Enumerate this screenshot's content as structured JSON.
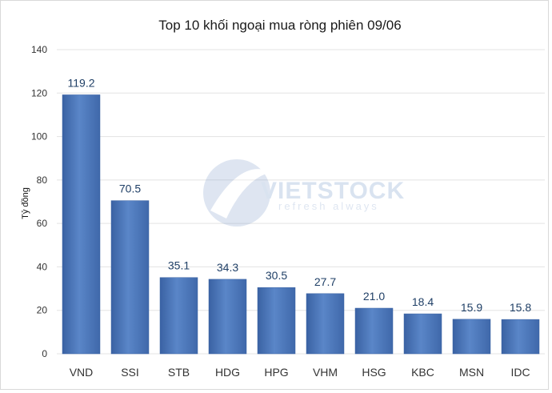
{
  "chart_data": {
    "type": "bar",
    "title": "Top 10 khối ngoại mua ròng phiên 09/06",
    "ylabel": "Tỷ đồng",
    "xlabel": "",
    "categories": [
      "VND",
      "SSI",
      "STB",
      "HDG",
      "HPG",
      "VHM",
      "HSG",
      "KBC",
      "MSN",
      "IDC"
    ],
    "values": [
      119.2,
      70.5,
      35.1,
      34.3,
      30.5,
      27.7,
      21.0,
      18.4,
      15.9,
      15.8
    ],
    "value_labels": [
      "119.2",
      "70.5",
      "35.1",
      "34.3",
      "30.5",
      "27.7",
      "21.0",
      "18.4",
      "15.9",
      "15.8"
    ],
    "ylim": [
      0,
      140
    ],
    "yticks": [
      0,
      20,
      40,
      60,
      80,
      100,
      120,
      140
    ],
    "grid": true,
    "legend": "none",
    "colors": {
      "bar": "#4a74b8",
      "bar_light": "#5a86c8",
      "bar_dark": "#3a62a3",
      "grid": "#e3e3e3"
    }
  },
  "watermark": {
    "name": "VIETSTOCK",
    "tagline": "refresh always"
  }
}
